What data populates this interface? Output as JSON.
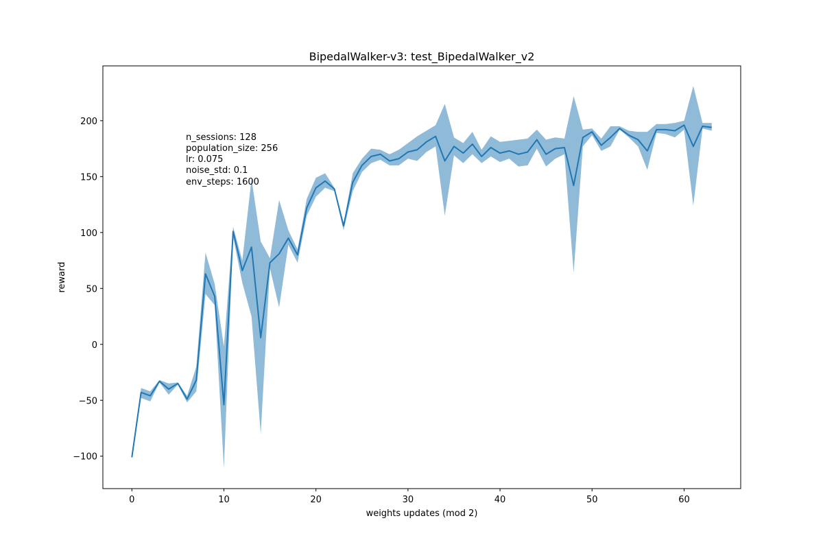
{
  "chart_data": {
    "type": "line",
    "title": "BipedalWalker-v3: test_BipedalWalker_v2",
    "xlabel": "weights updates (mod 2)",
    "ylabel": "reward",
    "xlim": [
      -3.15,
      66.15
    ],
    "ylim": [
      -129,
      249
    ],
    "x_ticks": [
      0,
      10,
      20,
      30,
      40,
      50,
      60
    ],
    "y_ticks": [
      -100,
      -50,
      0,
      50,
      100,
      150,
      200
    ],
    "x_tick_labels": [
      "0",
      "10",
      "20",
      "30",
      "40",
      "50",
      "60"
    ],
    "y_tick_labels": [
      "−100",
      "−50",
      "0",
      "50",
      "100",
      "150",
      "200"
    ],
    "grid": false,
    "annotation": [
      "n_sessions: 128",
      "population_size: 256",
      "lr: 0.075",
      "noise_std: 0.1",
      "env_steps: 1600"
    ],
    "colors": {
      "line": "#1f77b4",
      "band": "#1f77b4",
      "band_opacity": 0.5
    },
    "series": [
      {
        "x": [
          0,
          1,
          2,
          3,
          4,
          5,
          6,
          7,
          8,
          9,
          10,
          11,
          12,
          13,
          14,
          15,
          16,
          17,
          18,
          19,
          20,
          21,
          22,
          23,
          24,
          25,
          26,
          27,
          28,
          29,
          30,
          31,
          32,
          33,
          34,
          35,
          36,
          37,
          38,
          39,
          40,
          41,
          42,
          43,
          44,
          45,
          46,
          47,
          48,
          49,
          50,
          51,
          52,
          53,
          54,
          55,
          56,
          57,
          58,
          59,
          60,
          61,
          62,
          63
        ],
        "mean": [
          -101,
          -43,
          -46,
          -33,
          -40,
          -35,
          -49,
          -32,
          63,
          43,
          -54,
          101,
          66,
          87,
          6,
          73,
          81,
          95,
          80,
          122,
          140,
          146,
          139,
          106,
          145,
          160,
          168,
          170,
          164,
          166,
          172,
          174,
          181,
          186,
          164,
          177,
          171,
          179,
          168,
          176,
          171,
          173,
          170,
          172,
          183,
          170,
          175,
          176,
          142,
          185,
          190,
          178,
          185,
          193,
          187,
          183,
          173,
          192,
          192,
          191,
          196,
          177,
          195,
          194
        ],
        "lower": [
          -101,
          -48,
          -51,
          -34,
          -45,
          -36,
          -52,
          -42,
          45,
          35,
          -111,
          96,
          55,
          25,
          -80,
          68,
          33,
          89,
          73,
          115,
          132,
          140,
          137,
          102,
          137,
          154,
          162,
          165,
          160,
          160,
          166,
          164,
          172,
          177,
          115,
          169,
          162,
          170,
          162,
          168,
          163,
          166,
          159,
          160,
          175,
          159,
          166,
          170,
          64,
          177,
          187,
          173,
          177,
          192,
          185,
          177,
          156,
          189,
          188,
          185,
          192,
          124,
          193,
          191
        ],
        "upper": [
          -101,
          -39,
          -42,
          -32,
          -35,
          -34,
          -46,
          -20,
          82,
          54,
          -2,
          105,
          75,
          148,
          92,
          77,
          129,
          102,
          85,
          130,
          149,
          153,
          140,
          108,
          153,
          166,
          175,
          174,
          170,
          174,
          180,
          186,
          191,
          196,
          215,
          185,
          180,
          190,
          174,
          186,
          181,
          182,
          183,
          184,
          192,
          183,
          185,
          184,
          222,
          192,
          193,
          184,
          195,
          195,
          191,
          190,
          190,
          197,
          197,
          198,
          200,
          231,
          198,
          198
        ]
      }
    ]
  }
}
